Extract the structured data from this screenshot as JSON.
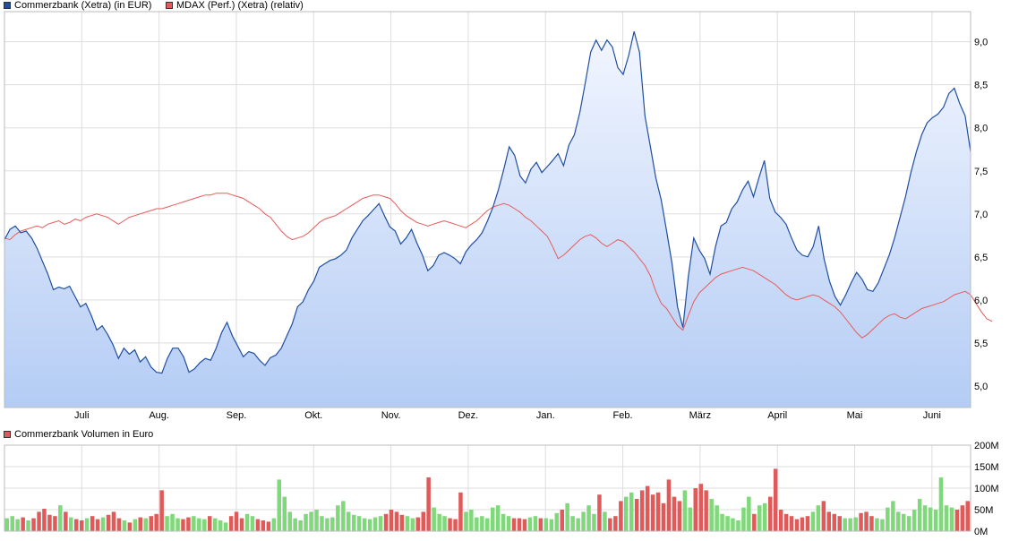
{
  "legend_top": [
    {
      "label": "Commerzbank (Xetra) (in EUR)",
      "color": "#1f4ea3"
    },
    {
      "label": "MDAX (Perf.) (Xetra) (relativ)",
      "color": "#e85a5a"
    }
  ],
  "legend_bottom": {
    "label": "Commerzbank Volumen in Euro",
    "color": "#e05a5a"
  },
  "chart_data": [
    {
      "type": "line",
      "x_tick_labels": [
        "Juli",
        "Aug.",
        "Sep.",
        "Okt.",
        "Nov.",
        "Dez.",
        "Jan.",
        "Feb.",
        "März",
        "April",
        "Mai",
        "Juni"
      ],
      "y_tick_labels": [
        "5,0",
        "5,5",
        "6,0",
        "6,5",
        "7,0",
        "7,5",
        "8,0",
        "8,5",
        "9,0"
      ],
      "ylim": [
        4.75,
        9.35
      ],
      "grid": true,
      "legend": "top-left",
      "series": [
        {
          "name": "Commerzbank (Xetra) (in EUR)",
          "color": "#1f4ea3",
          "values": [
            6.7,
            6.82,
            6.86,
            6.78,
            6.8,
            6.72,
            6.6,
            6.45,
            6.3,
            6.12,
            6.15,
            6.13,
            6.16,
            6.04,
            5.92,
            5.96,
            5.82,
            5.65,
            5.7,
            5.6,
            5.48,
            5.32,
            5.44,
            5.37,
            5.42,
            5.28,
            5.34,
            5.22,
            5.16,
            5.15,
            5.32,
            5.44,
            5.44,
            5.34,
            5.16,
            5.2,
            5.27,
            5.32,
            5.3,
            5.44,
            5.62,
            5.74,
            5.58,
            5.46,
            5.34,
            5.4,
            5.38,
            5.3,
            5.24,
            5.33,
            5.36,
            5.44,
            5.58,
            5.72,
            5.92,
            5.98,
            6.12,
            6.22,
            6.38,
            6.42,
            6.46,
            6.48,
            6.52,
            6.58,
            6.72,
            6.82,
            6.92,
            6.98,
            7.05,
            7.12,
            6.98,
            6.85,
            6.8,
            6.65,
            6.72,
            6.82,
            6.66,
            6.52,
            6.34,
            6.4,
            6.52,
            6.55,
            6.52,
            6.48,
            6.42,
            6.56,
            6.64,
            6.7,
            6.78,
            6.92,
            7.08,
            7.28,
            7.52,
            7.78,
            7.68,
            7.44,
            7.36,
            7.52,
            7.6,
            7.48,
            7.55,
            7.62,
            7.7,
            7.56,
            7.8,
            7.92,
            8.18,
            8.52,
            8.88,
            9.02,
            8.9,
            9.02,
            8.94,
            8.7,
            8.62,
            8.84,
            9.12,
            8.88,
            8.14,
            7.78,
            7.42,
            7.16,
            6.8,
            6.42,
            5.92,
            5.68,
            6.28,
            6.72,
            6.58,
            6.48,
            6.3,
            6.62,
            6.86,
            6.9,
            7.06,
            7.14,
            7.28,
            7.38,
            7.2,
            7.42,
            7.62,
            7.18,
            7.02,
            6.96,
            6.88,
            6.72,
            6.58,
            6.52,
            6.5,
            6.62,
            6.86,
            6.48,
            6.22,
            6.04,
            5.94,
            6.06,
            6.2,
            6.32,
            6.24,
            6.12,
            6.1,
            6.2,
            6.36,
            6.52,
            6.72,
            6.96,
            7.2,
            7.48,
            7.72,
            7.92,
            8.06,
            8.12,
            8.16,
            8.24,
            8.4,
            8.46,
            8.28,
            8.14,
            7.72
          ]
        },
        {
          "name": "MDAX (Perf.) (Xetra) (relativ)",
          "color": "#e85a5a",
          "values": [
            6.72,
            6.7,
            6.76,
            6.8,
            6.82,
            6.84,
            6.86,
            6.84,
            6.88,
            6.9,
            6.92,
            6.88,
            6.9,
            6.94,
            6.92,
            6.96,
            6.98,
            7.0,
            6.98,
            6.96,
            6.92,
            6.88,
            6.92,
            6.96,
            6.98,
            7.0,
            7.02,
            7.04,
            7.06,
            7.06,
            7.08,
            7.1,
            7.12,
            7.14,
            7.16,
            7.18,
            7.2,
            7.22,
            7.22,
            7.24,
            7.24,
            7.24,
            7.22,
            7.2,
            7.18,
            7.14,
            7.1,
            7.06,
            7.0,
            6.96,
            6.88,
            6.8,
            6.74,
            6.7,
            6.72,
            6.74,
            6.78,
            6.84,
            6.9,
            6.94,
            6.96,
            6.98,
            7.02,
            7.06,
            7.1,
            7.14,
            7.18,
            7.2,
            7.22,
            7.22,
            7.2,
            7.18,
            7.12,
            7.04,
            6.98,
            6.94,
            6.9,
            6.88,
            6.86,
            6.88,
            6.9,
            6.92,
            6.9,
            6.88,
            6.86,
            6.84,
            6.88,
            6.92,
            6.98,
            7.04,
            7.08,
            7.1,
            7.12,
            7.1,
            7.06,
            7.02,
            6.96,
            6.92,
            6.86,
            6.8,
            6.74,
            6.62,
            6.48,
            6.52,
            6.58,
            6.64,
            6.7,
            6.74,
            6.76,
            6.72,
            6.66,
            6.62,
            6.66,
            6.7,
            6.68,
            6.62,
            6.56,
            6.48,
            6.4,
            6.28,
            6.1,
            5.96,
            5.9,
            5.8,
            5.7,
            5.65,
            5.82,
            5.98,
            6.08,
            6.14,
            6.2,
            6.26,
            6.3,
            6.32,
            6.34,
            6.36,
            6.38,
            6.36,
            6.34,
            6.3,
            6.26,
            6.22,
            6.18,
            6.12,
            6.06,
            6.02,
            6.0,
            6.02,
            6.04,
            6.06,
            6.04,
            6.0,
            5.96,
            5.92,
            5.86,
            5.78,
            5.7,
            5.62,
            5.56,
            5.6,
            5.66,
            5.72,
            5.78,
            5.82,
            5.84,
            5.8,
            5.78,
            5.82,
            5.86,
            5.9,
            5.92,
            5.94,
            5.96,
            5.98,
            6.02,
            6.06,
            6.08,
            6.1,
            6.06,
            5.96,
            5.86,
            5.78,
            5.75
          ]
        }
      ]
    },
    {
      "type": "bar",
      "title": "Commerzbank Volumen in Euro",
      "y_tick_labels": [
        "0M",
        "50M",
        "100M",
        "150M",
        "200M"
      ],
      "ylim": [
        0,
        200
      ],
      "grid": true,
      "up_color": "#7fd97a",
      "down_color": "#e05a5a",
      "values": [
        30,
        35,
        28,
        32,
        25,
        30,
        45,
        52,
        38,
        35,
        60,
        45,
        32,
        28,
        25,
        30,
        35,
        28,
        32,
        38,
        45,
        30,
        25,
        20,
        28,
        32,
        30,
        35,
        40,
        95,
        35,
        40,
        30,
        28,
        32,
        35,
        30,
        28,
        35,
        30,
        25,
        20,
        35,
        45,
        30,
        40,
        35,
        28,
        25,
        22,
        30,
        120,
        80,
        45,
        30,
        25,
        40,
        45,
        50,
        35,
        30,
        32,
        60,
        70,
        45,
        38,
        35,
        30,
        28,
        32,
        35,
        40,
        50,
        45,
        38,
        35,
        30,
        32,
        45,
        125,
        55,
        40,
        35,
        30,
        28,
        90,
        45,
        50,
        32,
        35,
        30,
        55,
        60,
        40,
        35,
        30,
        30,
        28,
        32,
        35,
        30,
        30,
        28,
        42,
        50,
        65,
        35,
        30,
        45,
        60,
        40,
        85,
        45,
        30,
        35,
        70,
        80,
        90,
        75,
        95,
        105,
        85,
        90,
        65,
        120,
        80,
        70,
        95,
        55,
        100,
        110,
        95,
        75,
        60,
        40,
        35,
        30,
        25,
        55,
        80,
        40,
        60,
        65,
        80,
        145,
        50,
        40,
        35,
        28,
        32,
        35,
        45,
        60,
        70,
        45,
        40,
        35,
        30,
        30,
        32,
        42,
        45,
        35,
        30,
        28,
        55,
        70,
        45,
        40,
        35,
        50,
        75,
        60,
        55,
        50,
        125,
        60,
        55,
        50,
        60,
        70
      ]
    }
  ]
}
